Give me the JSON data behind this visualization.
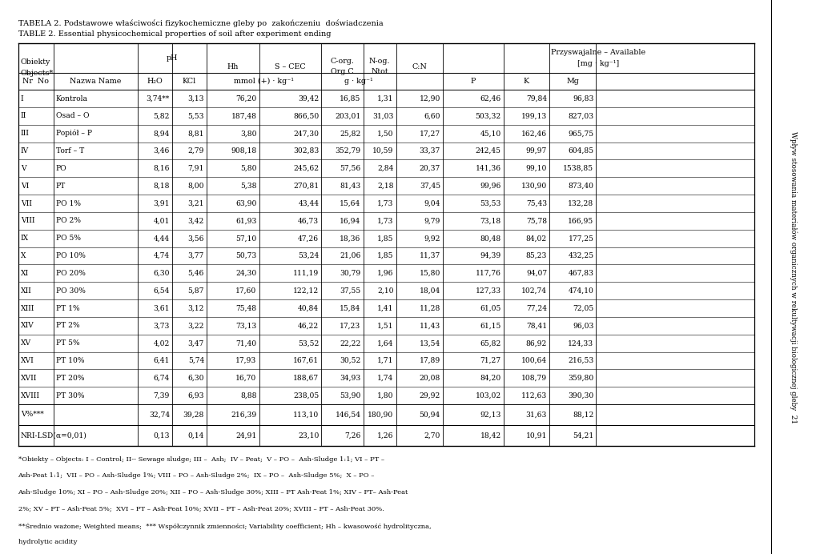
{
  "title_pl": "TABELA 2. Podstawowe właściwości fizykochemiczne gleby po  zakończeniu  doświadczenia",
  "title_en": "TABLE 2. Essential physicochemical properties of soil after experiment ending",
  "rows": [
    [
      "I",
      "Kontrola",
      "3,74**",
      "3,13",
      "76,20",
      "39,42",
      "16,85",
      "1,31",
      "12,90",
      "62,46",
      "79,84",
      "96,83"
    ],
    [
      "II",
      "Osad – O",
      "5,82",
      "5,53",
      "187,48",
      "866,50",
      "203,01",
      "31,03",
      "6,60",
      "503,32",
      "199,13",
      "827,03"
    ],
    [
      "III",
      "Popiół – P",
      "8,94",
      "8,81",
      "3,80",
      "247,30",
      "25,82",
      "1,50",
      "17,27",
      "45,10",
      "162,46",
      "965,75"
    ],
    [
      "IV",
      "Torf – T",
      "3,46",
      "2,79",
      "908,18",
      "302,83",
      "352,79",
      "10,59",
      "33,37",
      "242,45",
      "99,97",
      "604,85"
    ],
    [
      "V",
      "PO",
      "8,16",
      "7,91",
      "5,80",
      "245,62",
      "57,56",
      "2,84",
      "20,37",
      "141,36",
      "99,10",
      "1538,85"
    ],
    [
      "VI",
      "PT",
      "8,18",
      "8,00",
      "5,38",
      "270,81",
      "81,43",
      "2,18",
      "37,45",
      "99,96",
      "130,90",
      "873,40"
    ],
    [
      "VII",
      "PO 1%",
      "3,91",
      "3,21",
      "63,90",
      "43,44",
      "15,64",
      "1,73",
      "9,04",
      "53,53",
      "75,43",
      "132,28"
    ],
    [
      "VIII",
      "PO 2%",
      "4,01",
      "3,42",
      "61,93",
      "46,73",
      "16,94",
      "1,73",
      "9,79",
      "73,18",
      "75,78",
      "166,95"
    ],
    [
      "IX",
      "PO 5%",
      "4,44",
      "3,56",
      "57,10",
      "47,26",
      "18,36",
      "1,85",
      "9,92",
      "80,48",
      "84,02",
      "177,25"
    ],
    [
      "X",
      "PO 10%",
      "4,74",
      "3,77",
      "50,73",
      "53,24",
      "21,06",
      "1,85",
      "11,37",
      "94,39",
      "85,23",
      "432,25"
    ],
    [
      "XI",
      "PO 20%",
      "6,30",
      "5,46",
      "24,30",
      "111,19",
      "30,79",
      "1,96",
      "15,80",
      "117,76",
      "94,07",
      "467,83"
    ],
    [
      "XII",
      "PO 30%",
      "6,54",
      "5,87",
      "17,60",
      "122,12",
      "37,55",
      "2,10",
      "18,04",
      "127,33",
      "102,74",
      "474,10"
    ],
    [
      "XIII",
      "PT 1%",
      "3,61",
      "3,12",
      "75,48",
      "40,84",
      "15,84",
      "1,41",
      "11,28",
      "61,05",
      "77,24",
      "72,05"
    ],
    [
      "XIV",
      "PT 2%",
      "3,73",
      "3,22",
      "73,13",
      "46,22",
      "17,23",
      "1,51",
      "11,43",
      "61,15",
      "78,41",
      "96,03"
    ],
    [
      "XV",
      "PT 5%",
      "4,02",
      "3,47",
      "71,40",
      "53,52",
      "22,22",
      "1,64",
      "13,54",
      "65,82",
      "86,92",
      "124,33"
    ],
    [
      "XVI",
      "PT 10%",
      "6,41",
      "5,74",
      "17,93",
      "167,61",
      "30,52",
      "1,71",
      "17,89",
      "71,27",
      "100,64",
      "216,53"
    ],
    [
      "XVII",
      "PT 20%",
      "6,74",
      "6,30",
      "16,70",
      "188,67",
      "34,93",
      "1,74",
      "20,08",
      "84,20",
      "108,79",
      "359,80"
    ],
    [
      "XVIII",
      "PT 30%",
      "7,39",
      "6,93",
      "8,88",
      "238,05",
      "53,90",
      "1,80",
      "29,92",
      "103,02",
      "112,63",
      "390,30"
    ]
  ],
  "row_vcoeff": [
    "V%***",
    "",
    "32,74",
    "39,28",
    "216,39",
    "113,10",
    "146,54",
    "180,90",
    "50,94",
    "92,13",
    "31,63",
    "88,12"
  ],
  "row_lsd": [
    "NRI-LSD(α=0,01)",
    "",
    "0,13",
    "0,14",
    "24,91",
    "23,10",
    "7,26",
    "1,26",
    "2,70",
    "18,42",
    "10,91",
    "54,21"
  ],
  "footnotes": [
    "*Obiekty – Objects: I – Control; II-- Sewage sludge; III –  Ash;  IV – Peat;  V – PO –  Ash-Sludge 1:1; VI – PT –",
    "Ash-Peat 1:1;  VII – PO – Ash-Sludge 1%; VIII – PO – Ash-Sludge 2%;  IX – PO –  Ash-Sludge 5%;  X – PO –",
    "Ash-Sludge 10%; XI – PO – Ash-Sludge 20%; XII – PO – Ash-Sludge 30%; XIII – PT Ash-Peat 1%; XIV – PT– Ash-Peat",
    "2%; XV – PT – Ash-Peat 5%;  XVI – PT – Ash-Peat 10%; XVII – PT – Ash-Peat 20%; XVIII – PT – Ash-Peat 30%.",
    "**Średnio ważone; Weighted means;  *** Współczynnik zmienności; Variability coefficient; Hh – kwasowość hydrolityczna,",
    "hydrolytic acidity"
  ],
  "side_text": "Wpływ stosowania materiałów organicznych w rekultywacji biologicznej gleby  21"
}
